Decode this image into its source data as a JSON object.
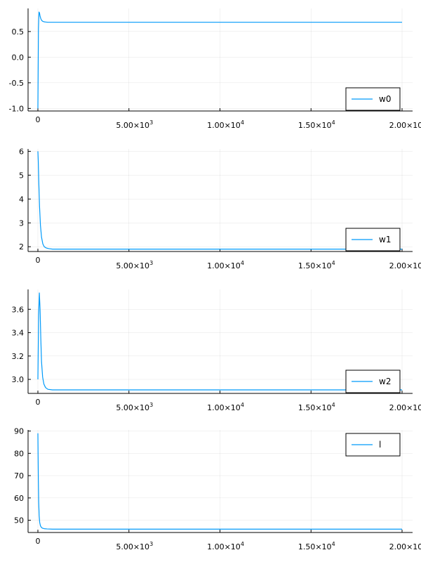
{
  "colors": {
    "series": "#009AFA"
  },
  "chart_data": [
    {
      "type": "line",
      "legend": "bottom-right",
      "grid": true,
      "xlim": [
        0,
        20000
      ],
      "ylim": [
        -1.05,
        0.95
      ],
      "xticks": [
        {
          "value": 0,
          "mantissa": "0",
          "exp": ""
        },
        {
          "value": 5000,
          "mantissa": "5.00×10",
          "exp": "3"
        },
        {
          "value": 10000,
          "mantissa": "1.00×10",
          "exp": "4"
        },
        {
          "value": 15000,
          "mantissa": "1.50×10",
          "exp": "4"
        },
        {
          "value": 20000,
          "mantissa": "2.00×10",
          "exp": "4"
        }
      ],
      "yticks": [
        {
          "value": -1.0,
          "label": "-1.0"
        },
        {
          "value": -0.5,
          "label": "-0.5"
        },
        {
          "value": 0.0,
          "label": "0.0"
        },
        {
          "value": 0.5,
          "label": "0.5"
        }
      ],
      "series": [
        {
          "name": "w0",
          "x": [
            0,
            30,
            60,
            90,
            120,
            160,
            200,
            260,
            330,
            420,
            550,
            800,
            1200,
            2000,
            5000,
            10000,
            15000,
            20000
          ],
          "y": [
            -1.0,
            0.55,
            0.88,
            0.86,
            0.8,
            0.75,
            0.72,
            0.7,
            0.69,
            0.685,
            0.68,
            0.68,
            0.68,
            0.68,
            0.68,
            0.68,
            0.68,
            0.68
          ]
        }
      ]
    },
    {
      "type": "line",
      "legend": "bottom-right",
      "grid": true,
      "xlim": [
        0,
        20000
      ],
      "ylim": [
        1.8,
        6.1
      ],
      "xticks": [
        {
          "value": 0,
          "mantissa": "0",
          "exp": ""
        },
        {
          "value": 5000,
          "mantissa": "5.00×10",
          "exp": "3"
        },
        {
          "value": 10000,
          "mantissa": "1.00×10",
          "exp": "4"
        },
        {
          "value": 15000,
          "mantissa": "1.50×10",
          "exp": "4"
        },
        {
          "value": 20000,
          "mantissa": "2.00×10",
          "exp": "4"
        }
      ],
      "yticks": [
        {
          "value": 2,
          "label": "2"
        },
        {
          "value": 3,
          "label": "3"
        },
        {
          "value": 4,
          "label": "4"
        },
        {
          "value": 5,
          "label": "5"
        },
        {
          "value": 6,
          "label": "6"
        }
      ],
      "series": [
        {
          "name": "w1",
          "x": [
            0,
            20,
            50,
            90,
            140,
            200,
            270,
            350,
            450,
            600,
            800,
            1200,
            2000,
            5000,
            10000,
            15000,
            20000
          ],
          "y": [
            6.0,
            5.6,
            4.7,
            3.7,
            2.9,
            2.4,
            2.12,
            2.0,
            1.95,
            1.92,
            1.9,
            1.9,
            1.9,
            1.9,
            1.9,
            1.9,
            1.9
          ]
        }
      ]
    },
    {
      "type": "line",
      "legend": "bottom-right",
      "grid": true,
      "xlim": [
        0,
        20000
      ],
      "ylim": [
        2.88,
        3.77
      ],
      "xticks": [
        {
          "value": 0,
          "mantissa": "0",
          "exp": ""
        },
        {
          "value": 5000,
          "mantissa": "5.00×10",
          "exp": "3"
        },
        {
          "value": 10000,
          "mantissa": "1.00×10",
          "exp": "4"
        },
        {
          "value": 15000,
          "mantissa": "1.50×10",
          "exp": "4"
        },
        {
          "value": 20000,
          "mantissa": "2.00×10",
          "exp": "4"
        }
      ],
      "yticks": [
        {
          "value": 3.0,
          "label": "3.0"
        },
        {
          "value": 3.2,
          "label": "3.2"
        },
        {
          "value": 3.4,
          "label": "3.4"
        },
        {
          "value": 3.6,
          "label": "3.6"
        }
      ],
      "series": [
        {
          "name": "w2",
          "x": [
            0,
            40,
            80,
            120,
            160,
            200,
            260,
            330,
            420,
            550,
            800,
            1200,
            2000,
            5000,
            10000,
            15000,
            20000
          ],
          "y": [
            3.0,
            3.55,
            3.74,
            3.6,
            3.35,
            3.15,
            3.02,
            2.96,
            2.93,
            2.915,
            2.91,
            2.91,
            2.91,
            2.91,
            2.91,
            2.91,
            2.91
          ]
        }
      ]
    },
    {
      "type": "line",
      "legend": "top-right",
      "grid": true,
      "xlim": [
        0,
        20000
      ],
      "ylim": [
        44.5,
        90.5
      ],
      "xticks": [
        {
          "value": 0,
          "mantissa": "0",
          "exp": ""
        },
        {
          "value": 5000,
          "mantissa": "5.00×10",
          "exp": "3"
        },
        {
          "value": 10000,
          "mantissa": "1.00×10",
          "exp": "4"
        },
        {
          "value": 15000,
          "mantissa": "1.50×10",
          "exp": "4"
        },
        {
          "value": 20000,
          "mantissa": "2.00×10",
          "exp": "4"
        }
      ],
      "yticks": [
        {
          "value": 50,
          "label": "50"
        },
        {
          "value": 60,
          "label": "60"
        },
        {
          "value": 70,
          "label": "70"
        },
        {
          "value": 80,
          "label": "80"
        },
        {
          "value": 90,
          "label": "90"
        }
      ],
      "series": [
        {
          "name": "l",
          "x": [
            0,
            10,
            25,
            45,
            70,
            100,
            140,
            190,
            260,
            350,
            500,
            800,
            1500,
            5000,
            10000,
            15000,
            20000
          ],
          "y": [
            89,
            80,
            68,
            58,
            52,
            49,
            47.5,
            46.8,
            46.4,
            46.2,
            46.1,
            46.0,
            46.0,
            46.0,
            46.0,
            46.0,
            46.0
          ]
        }
      ]
    }
  ]
}
